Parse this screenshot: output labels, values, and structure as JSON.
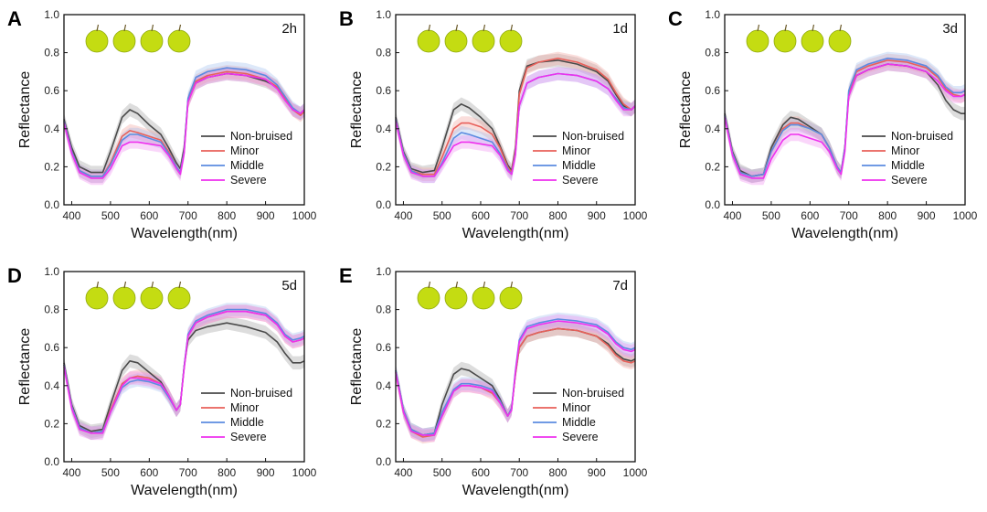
{
  "figure": {
    "legend_labels": [
      "Non-bruised",
      "Minor",
      "Middle",
      "Severe"
    ],
    "series_colors": [
      "#4a4a4a",
      "#e8605a",
      "#5b8be0",
      "#ee30ee"
    ],
    "band_colors": [
      "#9e9e9e",
      "#f2a19c",
      "#9fbcef",
      "#f28af2"
    ],
    "apple_color": "#c4dc12"
  },
  "chart_data": [
    {
      "type": "line",
      "panel": "A",
      "time_label": "2h",
      "xlabel": "Wavelength(nm)",
      "ylabel": "Reflectance",
      "xlim": [
        380,
        1000
      ],
      "ylim": [
        0.0,
        1.0
      ],
      "xticks": [
        400,
        500,
        600,
        700,
        800,
        900,
        1000
      ],
      "yticks": [
        0.0,
        0.2,
        0.4,
        0.6,
        0.8,
        1.0
      ],
      "x": [
        380,
        400,
        420,
        450,
        480,
        500,
        530,
        550,
        570,
        600,
        630,
        650,
        670,
        680,
        690,
        700,
        720,
        750,
        800,
        850,
        900,
        930,
        950,
        970,
        990,
        1000
      ],
      "series": [
        {
          "name": "Non-bruised",
          "values": [
            0.45,
            0.3,
            0.2,
            0.17,
            0.17,
            0.28,
            0.46,
            0.5,
            0.48,
            0.42,
            0.37,
            0.3,
            0.22,
            0.19,
            0.3,
            0.55,
            0.64,
            0.67,
            0.69,
            0.68,
            0.65,
            0.62,
            0.56,
            0.5,
            0.48,
            0.5
          ]
        },
        {
          "name": "Minor",
          "values": [
            0.44,
            0.28,
            0.18,
            0.15,
            0.15,
            0.22,
            0.36,
            0.39,
            0.38,
            0.36,
            0.34,
            0.28,
            0.2,
            0.17,
            0.28,
            0.54,
            0.65,
            0.68,
            0.7,
            0.69,
            0.66,
            0.62,
            0.56,
            0.5,
            0.47,
            0.49
          ]
        },
        {
          "name": "Middle",
          "values": [
            0.44,
            0.28,
            0.18,
            0.15,
            0.15,
            0.21,
            0.34,
            0.37,
            0.37,
            0.35,
            0.33,
            0.27,
            0.2,
            0.17,
            0.28,
            0.56,
            0.67,
            0.7,
            0.72,
            0.71,
            0.68,
            0.63,
            0.57,
            0.51,
            0.48,
            0.5
          ]
        },
        {
          "name": "Severe",
          "values": [
            0.43,
            0.27,
            0.17,
            0.14,
            0.14,
            0.19,
            0.31,
            0.33,
            0.33,
            0.32,
            0.31,
            0.26,
            0.19,
            0.16,
            0.27,
            0.54,
            0.64,
            0.67,
            0.69,
            0.68,
            0.66,
            0.61,
            0.55,
            0.5,
            0.48,
            0.5
          ]
        }
      ]
    },
    {
      "type": "line",
      "panel": "B",
      "time_label": "1d",
      "xlabel": "Wavelength(nm)",
      "ylabel": "Reflectance",
      "xlim": [
        380,
        1000
      ],
      "ylim": [
        0.0,
        1.0
      ],
      "xticks": [
        400,
        500,
        600,
        700,
        800,
        900,
        1000
      ],
      "yticks": [
        0.0,
        0.2,
        0.4,
        0.6,
        0.8,
        1.0
      ],
      "x": [
        380,
        400,
        420,
        450,
        480,
        500,
        530,
        550,
        570,
        600,
        630,
        650,
        670,
        680,
        690,
        700,
        720,
        750,
        800,
        850,
        900,
        930,
        950,
        970,
        990,
        1000
      ],
      "series": [
        {
          "name": "Non-bruised",
          "values": [
            0.46,
            0.28,
            0.19,
            0.17,
            0.18,
            0.3,
            0.5,
            0.53,
            0.51,
            0.46,
            0.4,
            0.31,
            0.21,
            0.18,
            0.3,
            0.6,
            0.73,
            0.75,
            0.76,
            0.74,
            0.7,
            0.65,
            0.58,
            0.52,
            0.5,
            0.52
          ]
        },
        {
          "name": "Minor",
          "values": [
            0.45,
            0.27,
            0.18,
            0.16,
            0.16,
            0.25,
            0.4,
            0.43,
            0.43,
            0.41,
            0.37,
            0.3,
            0.2,
            0.17,
            0.29,
            0.58,
            0.72,
            0.75,
            0.77,
            0.75,
            0.71,
            0.66,
            0.59,
            0.53,
            0.5,
            0.52
          ]
        },
        {
          "name": "Middle",
          "values": [
            0.45,
            0.27,
            0.18,
            0.15,
            0.15,
            0.22,
            0.35,
            0.38,
            0.37,
            0.35,
            0.33,
            0.27,
            0.19,
            0.16,
            0.27,
            0.52,
            0.64,
            0.67,
            0.69,
            0.68,
            0.65,
            0.61,
            0.56,
            0.51,
            0.5,
            0.52
          ]
        },
        {
          "name": "Severe",
          "values": [
            0.44,
            0.26,
            0.17,
            0.15,
            0.15,
            0.21,
            0.31,
            0.33,
            0.33,
            0.32,
            0.31,
            0.26,
            0.18,
            0.16,
            0.26,
            0.52,
            0.64,
            0.67,
            0.69,
            0.68,
            0.65,
            0.61,
            0.55,
            0.5,
            0.5,
            0.52
          ]
        }
      ]
    },
    {
      "type": "line",
      "panel": "C",
      "time_label": "3d",
      "xlabel": "Wavelength(nm)",
      "ylabel": "Reflectance",
      "xlim": [
        380,
        1000
      ],
      "ylim": [
        0.0,
        1.0
      ],
      "xticks": [
        400,
        500,
        600,
        700,
        800,
        900,
        1000
      ],
      "yticks": [
        0.0,
        0.2,
        0.4,
        0.6,
        0.8,
        1.0
      ],
      "x": [
        380,
        400,
        420,
        450,
        480,
        500,
        530,
        550,
        570,
        600,
        630,
        650,
        670,
        680,
        690,
        700,
        720,
        750,
        800,
        850,
        900,
        930,
        950,
        970,
        990,
        1000
      ],
      "series": [
        {
          "name": "Non-bruised",
          "values": [
            0.48,
            0.28,
            0.18,
            0.15,
            0.16,
            0.3,
            0.42,
            0.46,
            0.45,
            0.41,
            0.37,
            0.3,
            0.2,
            0.17,
            0.3,
            0.58,
            0.68,
            0.71,
            0.74,
            0.73,
            0.7,
            0.63,
            0.55,
            0.5,
            0.48,
            0.48
          ]
        },
        {
          "name": "Minor",
          "values": [
            0.47,
            0.27,
            0.17,
            0.15,
            0.16,
            0.28,
            0.4,
            0.43,
            0.43,
            0.4,
            0.37,
            0.3,
            0.2,
            0.17,
            0.3,
            0.59,
            0.7,
            0.73,
            0.76,
            0.75,
            0.72,
            0.67,
            0.61,
            0.58,
            0.57,
            0.58
          ]
        },
        {
          "name": "Middle",
          "values": [
            0.47,
            0.27,
            0.17,
            0.15,
            0.16,
            0.28,
            0.39,
            0.42,
            0.42,
            0.4,
            0.37,
            0.3,
            0.2,
            0.17,
            0.3,
            0.6,
            0.71,
            0.74,
            0.77,
            0.76,
            0.73,
            0.68,
            0.62,
            0.59,
            0.59,
            0.6
          ]
        },
        {
          "name": "Severe",
          "values": [
            0.46,
            0.26,
            0.16,
            0.14,
            0.14,
            0.24,
            0.34,
            0.37,
            0.37,
            0.35,
            0.33,
            0.28,
            0.19,
            0.16,
            0.28,
            0.57,
            0.68,
            0.71,
            0.74,
            0.73,
            0.7,
            0.65,
            0.6,
            0.57,
            0.57,
            0.58
          ]
        }
      ]
    },
    {
      "type": "line",
      "panel": "D",
      "time_label": "5d",
      "xlabel": "Wavelength(nm)",
      "ylabel": "Reflectance",
      "xlim": [
        380,
        1000
      ],
      "ylim": [
        0.0,
        1.0
      ],
      "xticks": [
        400,
        500,
        600,
        700,
        800,
        900,
        1000
      ],
      "yticks": [
        0.0,
        0.2,
        0.4,
        0.6,
        0.8,
        1.0
      ],
      "x": [
        380,
        400,
        420,
        450,
        480,
        500,
        530,
        550,
        570,
        600,
        630,
        650,
        670,
        680,
        690,
        700,
        720,
        750,
        800,
        850,
        900,
        930,
        950,
        970,
        990,
        1000
      ],
      "series": [
        {
          "name": "Non-bruised",
          "values": [
            0.52,
            0.3,
            0.19,
            0.16,
            0.17,
            0.3,
            0.48,
            0.53,
            0.52,
            0.47,
            0.42,
            0.35,
            0.27,
            0.3,
            0.5,
            0.64,
            0.69,
            0.71,
            0.73,
            0.71,
            0.68,
            0.63,
            0.57,
            0.52,
            0.52,
            0.53
          ]
        },
        {
          "name": "Minor",
          "values": [
            0.51,
            0.29,
            0.18,
            0.15,
            0.16,
            0.27,
            0.41,
            0.44,
            0.45,
            0.44,
            0.41,
            0.35,
            0.27,
            0.3,
            0.5,
            0.66,
            0.73,
            0.76,
            0.79,
            0.79,
            0.77,
            0.72,
            0.66,
            0.63,
            0.64,
            0.65
          ]
        },
        {
          "name": "Middle",
          "values": [
            0.51,
            0.29,
            0.18,
            0.15,
            0.16,
            0.26,
            0.39,
            0.42,
            0.43,
            0.42,
            0.4,
            0.34,
            0.27,
            0.3,
            0.5,
            0.67,
            0.74,
            0.77,
            0.8,
            0.8,
            0.78,
            0.73,
            0.67,
            0.64,
            0.65,
            0.66
          ]
        },
        {
          "name": "Severe",
          "values": [
            0.5,
            0.28,
            0.17,
            0.15,
            0.15,
            0.26,
            0.4,
            0.44,
            0.44,
            0.43,
            0.41,
            0.35,
            0.27,
            0.3,
            0.49,
            0.66,
            0.73,
            0.76,
            0.79,
            0.79,
            0.77,
            0.72,
            0.66,
            0.63,
            0.64,
            0.65
          ]
        }
      ]
    },
    {
      "type": "line",
      "panel": "E",
      "time_label": "7d",
      "xlabel": "Wavelength(nm)",
      "ylabel": "Reflectance",
      "xlim": [
        380,
        1000
      ],
      "ylim": [
        0.0,
        1.0
      ],
      "xticks": [
        400,
        500,
        600,
        700,
        800,
        900,
        1000
      ],
      "yticks": [
        0.0,
        0.2,
        0.4,
        0.6,
        0.8,
        1.0
      ],
      "x": [
        380,
        400,
        420,
        450,
        480,
        500,
        530,
        550,
        570,
        600,
        630,
        650,
        670,
        680,
        690,
        700,
        720,
        750,
        800,
        850,
        900,
        930,
        950,
        970,
        990,
        1000
      ],
      "series": [
        {
          "name": "Non-bruised",
          "values": [
            0.48,
            0.27,
            0.17,
            0.14,
            0.15,
            0.3,
            0.46,
            0.49,
            0.48,
            0.44,
            0.4,
            0.33,
            0.24,
            0.28,
            0.46,
            0.6,
            0.66,
            0.68,
            0.7,
            0.69,
            0.66,
            0.62,
            0.57,
            0.54,
            0.53,
            0.54
          ]
        },
        {
          "name": "Minor",
          "values": [
            0.47,
            0.26,
            0.16,
            0.13,
            0.14,
            0.24,
            0.37,
            0.4,
            0.4,
            0.39,
            0.36,
            0.31,
            0.24,
            0.28,
            0.46,
            0.6,
            0.66,
            0.68,
            0.7,
            0.69,
            0.66,
            0.61,
            0.56,
            0.53,
            0.52,
            0.53
          ]
        },
        {
          "name": "Middle",
          "values": [
            0.48,
            0.27,
            0.17,
            0.14,
            0.15,
            0.26,
            0.38,
            0.41,
            0.41,
            0.4,
            0.38,
            0.32,
            0.24,
            0.28,
            0.48,
            0.64,
            0.71,
            0.73,
            0.75,
            0.74,
            0.72,
            0.68,
            0.63,
            0.6,
            0.59,
            0.6
          ]
        },
        {
          "name": "Severe",
          "values": [
            0.47,
            0.26,
            0.16,
            0.14,
            0.14,
            0.24,
            0.37,
            0.4,
            0.4,
            0.39,
            0.37,
            0.31,
            0.24,
            0.27,
            0.47,
            0.63,
            0.7,
            0.72,
            0.74,
            0.73,
            0.71,
            0.67,
            0.62,
            0.59,
            0.58,
            0.59
          ]
        }
      ]
    }
  ]
}
